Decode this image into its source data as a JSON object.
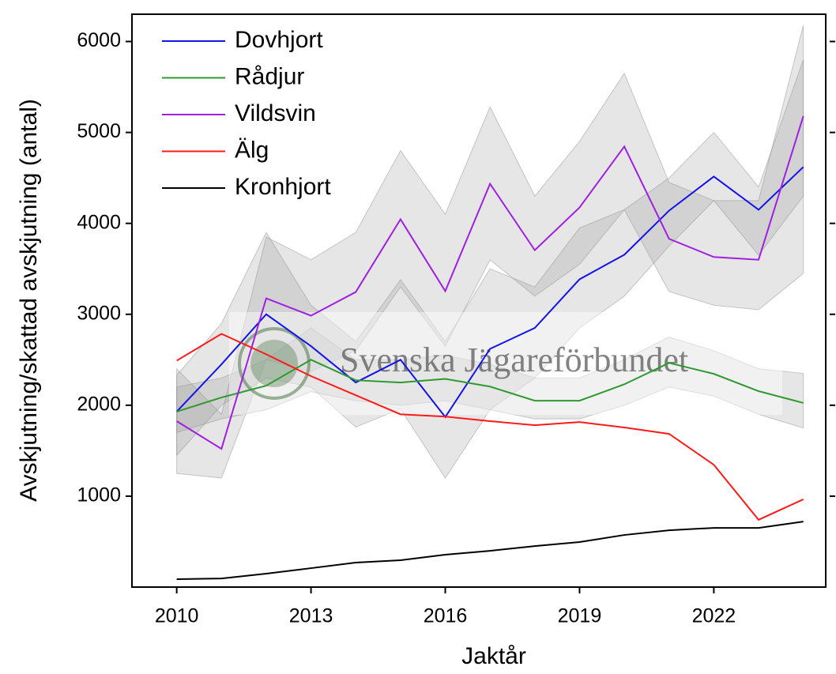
{
  "chart_data": {
    "type": "line",
    "xlabel": "Jaktår",
    "ylabel": "Avskjutning/skattad avskjutning (antal)",
    "watermark": "Svenska Jägareförbundet",
    "x": [
      2010,
      2011,
      2012,
      2013,
      2014,
      2015,
      2016,
      2017,
      2018,
      2019,
      2020,
      2021,
      2022,
      2023,
      2024
    ],
    "xlim": [
      2009,
      2024.5
    ],
    "xticks": [
      2010,
      2013,
      2016,
      2019,
      2022
    ],
    "ylim": [
      0,
      6300
    ],
    "yticks": [
      1000,
      2000,
      3000,
      4000,
      5000,
      6000
    ],
    "legend": "upper left",
    "series": [
      {
        "name": "Dovhjort",
        "color": "#1414e6",
        "values": [
          1930,
          2450,
          3000,
          2650,
          2250,
          2500,
          1870,
          2620,
          2850,
          3385,
          3655,
          4140,
          4515,
          4150,
          4620
        ],
        "lower": [
          1450,
          2000,
          2300,
          2200,
          1760,
          1960,
          1200,
          1950,
          2300,
          2850,
          3200,
          3750,
          4250,
          3650,
          4300
        ],
        "upper": [
          2330,
          2900,
          3900,
          3100,
          2700,
          3380,
          2700,
          3500,
          3300,
          3950,
          4150,
          4500,
          5000,
          4400,
          5800
        ]
      },
      {
        "name": "Rådjur",
        "color": "#2e9a2e",
        "values": [
          1930,
          2085,
          2215,
          2500,
          2275,
          2250,
          2290,
          2205,
          2050,
          2050,
          2230,
          2465,
          2345,
          2155,
          2025
        ],
        "lower": [
          1700,
          1850,
          1950,
          2150,
          2050,
          2000,
          2050,
          1950,
          1850,
          1850,
          2000,
          2200,
          2100,
          1900,
          1750
        ],
        "upper": [
          2200,
          2300,
          2500,
          2850,
          2500,
          2500,
          2550,
          2450,
          2300,
          2300,
          2500,
          2750,
          2600,
          2400,
          2350
        ]
      },
      {
        "name": "Vildsvin",
        "color": "#a020e0",
        "values": [
          1825,
          1520,
          3175,
          2985,
          3245,
          4045,
          3255,
          4435,
          3705,
          4175,
          4845,
          3830,
          3630,
          3600,
          5180
        ],
        "lower": [
          1250,
          1200,
          2500,
          2370,
          2600,
          3300,
          2650,
          3600,
          3200,
          3550,
          4150,
          3250,
          3100,
          3050,
          3450
        ],
        "upper": [
          2400,
          1900,
          3850,
          3600,
          3900,
          4800,
          4100,
          5280,
          4300,
          4900,
          5650,
          4450,
          4250,
          4250,
          6180
        ]
      },
      {
        "name": "Älg",
        "color": "#ff1a1a",
        "values": [
          2490,
          2785,
          2560,
          2320,
          2110,
          1900,
          1875,
          1825,
          1780,
          1815,
          1755,
          1685,
          1345,
          740,
          965
        ]
      },
      {
        "name": "Kronhjort",
        "color": "#000000",
        "values": [
          87,
          95,
          148,
          208,
          269,
          295,
          356,
          399,
          451,
          495,
          573,
          625,
          651,
          651,
          720
        ]
      }
    ]
  }
}
